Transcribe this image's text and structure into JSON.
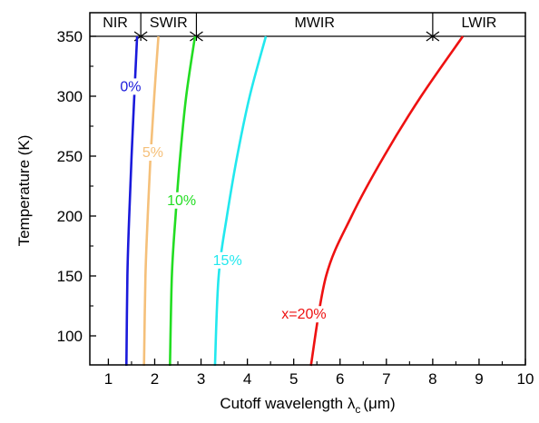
{
  "chart_data": {
    "type": "line",
    "title": "",
    "xlabel_main": "Cutoff wavelength λ",
    "xlabel_sub": "c",
    "xlabel_unit": "(μm)",
    "ylabel": "Temperature (K)",
    "xlim": [
      0.6,
      10
    ],
    "ylim": [
      75,
      352
    ],
    "x_ticks": [
      1,
      2,
      3,
      4,
      5,
      6,
      7,
      8,
      9,
      10
    ],
    "x_tick_labels": [
      "1",
      "2",
      "3",
      "4",
      "5",
      "6",
      "7",
      "8",
      "9",
      "10"
    ],
    "y_ticks": [
      100,
      150,
      200,
      250,
      300,
      350
    ],
    "y_tick_labels": [
      "100",
      "150",
      "200",
      "250",
      "300",
      "350"
    ],
    "grid": false,
    "legend": "none",
    "bands": [
      {
        "label": "NIR",
        "start": 0.6,
        "end": 1.7
      },
      {
        "label": "SWIR",
        "start": 1.7,
        "end": 2.9
      },
      {
        "label": "MWIR",
        "start": 2.9,
        "end": 8.0
      },
      {
        "label": "LWIR",
        "start": 8.0,
        "end": 10
      }
    ],
    "series": [
      {
        "label": "0%",
        "color": "#1a1adb",
        "label_at": [
          1.48,
          305
        ],
        "points": [
          [
            1.39,
            75
          ],
          [
            1.41,
            150
          ],
          [
            1.45,
            200
          ],
          [
            1.5,
            250
          ],
          [
            1.56,
            300
          ],
          [
            1.62,
            350
          ]
        ]
      },
      {
        "label": "5%",
        "color": "#f5c07a",
        "label_at": [
          1.96,
          250
        ],
        "points": [
          [
            1.77,
            75
          ],
          [
            1.8,
            150
          ],
          [
            1.85,
            200
          ],
          [
            1.91,
            250
          ],
          [
            1.99,
            300
          ],
          [
            2.08,
            350
          ]
        ]
      },
      {
        "label": "10%",
        "color": "#22dd22",
        "label_at": [
          2.58,
          210
        ],
        "points": [
          [
            2.33,
            75
          ],
          [
            2.37,
            150
          ],
          [
            2.45,
            200
          ],
          [
            2.55,
            250
          ],
          [
            2.68,
            300
          ],
          [
            2.87,
            350
          ]
        ]
      },
      {
        "label": "15%",
        "color": "#22e8ee",
        "label_at": [
          3.57,
          160
        ],
        "points": [
          [
            3.3,
            75
          ],
          [
            3.38,
            150
          ],
          [
            3.56,
            200
          ],
          [
            3.78,
            250
          ],
          [
            4.05,
            300
          ],
          [
            4.4,
            350
          ]
        ]
      },
      {
        "label": "x=20%",
        "color": "#ee1111",
        "label_at": [
          5.22,
          115
        ],
        "points": [
          [
            5.37,
            75
          ],
          [
            5.7,
            150
          ],
          [
            6.25,
            200
          ],
          [
            6.95,
            250
          ],
          [
            7.75,
            300
          ],
          [
            8.65,
            350
          ]
        ]
      }
    ]
  }
}
